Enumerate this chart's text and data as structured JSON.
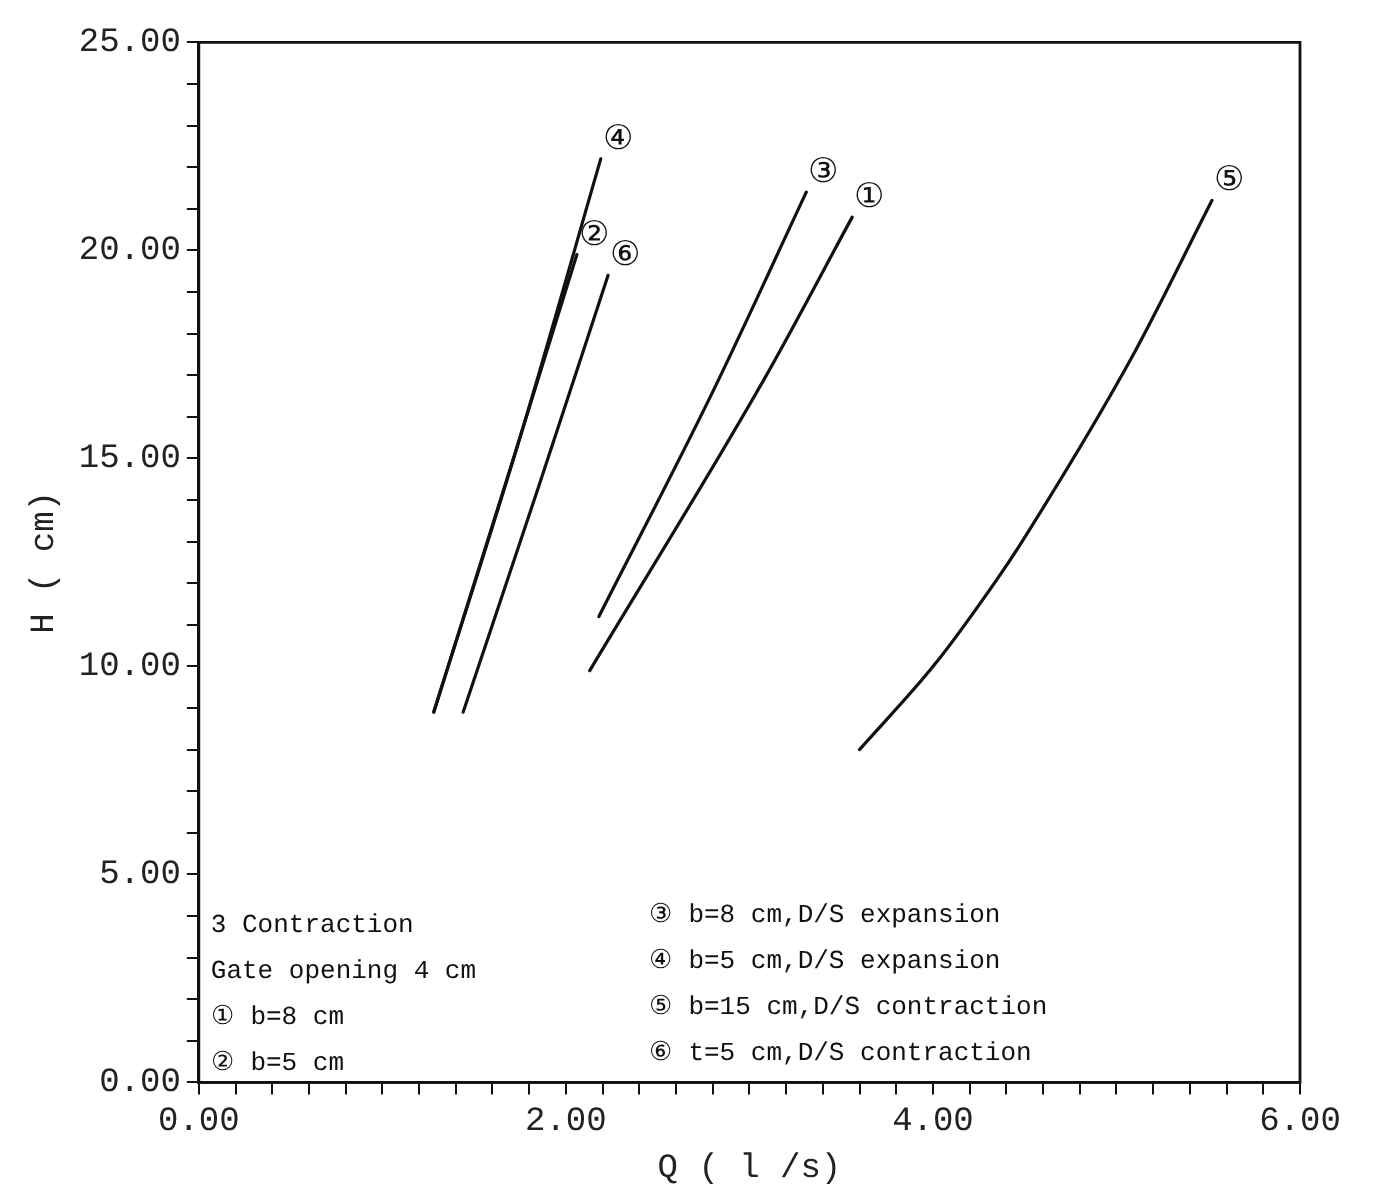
{
  "chart_data": {
    "type": "line",
    "xlabel": "Q ( l /s)",
    "ylabel": "H ( cm)",
    "xlim": [
      0,
      6
    ],
    "ylim": [
      0,
      25
    ],
    "xticks": [
      {
        "value": 0,
        "label": "0.00"
      },
      {
        "value": 0.2,
        "label": null
      },
      {
        "value": 0.4,
        "label": null
      },
      {
        "value": 0.6,
        "label": null
      },
      {
        "value": 0.8,
        "label": null
      },
      {
        "value": 1,
        "label": null
      },
      {
        "value": 1.2,
        "label": null
      },
      {
        "value": 1.4,
        "label": null
      },
      {
        "value": 1.6,
        "label": null
      },
      {
        "value": 1.8,
        "label": null
      },
      {
        "value": 2,
        "label": "2.00"
      },
      {
        "value": 2.2,
        "label": null
      },
      {
        "value": 2.4,
        "label": null
      },
      {
        "value": 2.6,
        "label": null
      },
      {
        "value": 2.8,
        "label": null
      },
      {
        "value": 3,
        "label": null
      },
      {
        "value": 3.2,
        "label": null
      },
      {
        "value": 3.4,
        "label": null
      },
      {
        "value": 3.6,
        "label": null
      },
      {
        "value": 3.8,
        "label": null
      },
      {
        "value": 4,
        "label": "4.00"
      },
      {
        "value": 4.2,
        "label": null
      },
      {
        "value": 4.4,
        "label": null
      },
      {
        "value": 4.6,
        "label": null
      },
      {
        "value": 4.8,
        "label": null
      },
      {
        "value": 5,
        "label": null
      },
      {
        "value": 5.2,
        "label": null
      },
      {
        "value": 5.4,
        "label": null
      },
      {
        "value": 5.6,
        "label": null
      },
      {
        "value": 5.8,
        "label": null
      },
      {
        "value": 6,
        "label": "6.00"
      }
    ],
    "yticks": [
      {
        "value": 0,
        "label": "0.00"
      },
      {
        "value": 1,
        "label": null
      },
      {
        "value": 2,
        "label": null
      },
      {
        "value": 3,
        "label": null
      },
      {
        "value": 4,
        "label": null
      },
      {
        "value": 5,
        "label": "5.00"
      },
      {
        "value": 6,
        "label": null
      },
      {
        "value": 7,
        "label": null
      },
      {
        "value": 8,
        "label": null
      },
      {
        "value": 9,
        "label": null
      },
      {
        "value": 10,
        "label": "10.00"
      },
      {
        "value": 11,
        "label": null
      },
      {
        "value": 12,
        "label": null
      },
      {
        "value": 13,
        "label": null
      },
      {
        "value": 14,
        "label": null
      },
      {
        "value": 15,
        "label": "15.00"
      },
      {
        "value": 16,
        "label": null
      },
      {
        "value": 17,
        "label": null
      },
      {
        "value": 18,
        "label": null
      },
      {
        "value": 19,
        "label": null
      },
      {
        "value": 20,
        "label": "20.00"
      },
      {
        "value": 21,
        "label": null
      },
      {
        "value": 22,
        "label": null
      },
      {
        "value": 23,
        "label": null
      },
      {
        "value": 24,
        "label": null
      },
      {
        "value": 25,
        "label": "25.00"
      }
    ],
    "grid": false,
    "legend": false,
    "marker": "none",
    "line_style": "solid",
    "series": [
      {
        "color": "#111111",
        "x": [
          2.13,
          3.08,
          3.56
        ],
        "values": [
          9.9,
          16.9,
          20.8
        ]
      },
      {
        "color": "#111111",
        "x": [
          1.28,
          1.7,
          2.06
        ],
        "values": [
          8.9,
          14.8,
          19.9
        ]
      },
      {
        "color": "#111111",
        "x": [
          2.18,
          2.8,
          3.31
        ],
        "values": [
          11.2,
          16.6,
          21.4
        ]
      },
      {
        "color": "#111111",
        "x": [
          1.28,
          1.75,
          2.19
        ],
        "values": [
          8.9,
          15.5,
          22.2
        ]
      },
      {
        "color": "#111111",
        "x": [
          3.6,
          4.01,
          4.35,
          4.5,
          5.08,
          5.52
        ],
        "values": [
          8.0,
          10.05,
          12.1,
          13.1,
          17.4,
          21.2
        ]
      },
      {
        "color": "#111111",
        "x": [
          1.44,
          1.85,
          2.23
        ],
        "values": [
          8.9,
          14.3,
          19.4
        ]
      }
    ],
    "annotations": [
      {
        "text": "①",
        "x": 3.56,
        "y": 20.8
      },
      {
        "text": "②",
        "x": 2.06,
        "y": 19.9
      },
      {
        "text": "③",
        "x": 3.31,
        "y": 21.4
      },
      {
        "text": "④",
        "x": 2.19,
        "y": 22.2
      },
      {
        "text": "⑤",
        "x": 5.52,
        "y": 21.2
      },
      {
        "text": "⑥",
        "x": 2.23,
        "y": 19.4
      },
      "3 Contraction",
      "Gate opening 4 cm",
      "① b=8 cm",
      "② b=5 cm",
      "③ b=8 cm,D/S expansion",
      "④ b=5 cm,D/S expansion",
      "⑤ b=15 cm,D/S contraction",
      "⑥ t=5 cm,D/S contraction"
    ]
  }
}
